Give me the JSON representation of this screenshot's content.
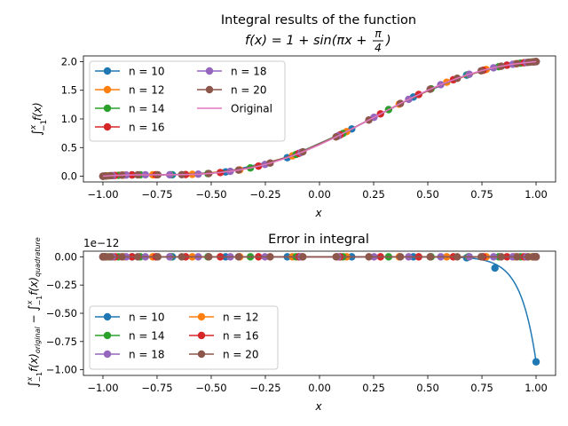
{
  "chart_data": [
    {
      "type": "line",
      "title_line1": "Integral results of the function",
      "title_line2": {
        "lhs": "f(x) = 1 + sin(πx + ",
        "num": "π",
        "den": "4",
        "rhs": ")"
      },
      "xlabel": "x",
      "ylabel": "∫",
      "ylabel_parts": {
        "sup": "x",
        "sub": "−1",
        "body": "f(x)"
      },
      "xlim": [
        -1.09,
        1.09
      ],
      "ylim": [
        -0.1,
        2.1
      ],
      "xticks": [
        -1.0,
        -0.75,
        -0.5,
        -0.25,
        0.0,
        0.25,
        0.5,
        0.75,
        1.0
      ],
      "xtick_labels": [
        "−1.00",
        "−0.75",
        "−0.50",
        "−0.25",
        "0.00",
        "0.25",
        "0.50",
        "0.75",
        "1.00"
      ],
      "yticks": [
        0.0,
        0.5,
        1.0,
        1.5,
        2.0
      ],
      "ytick_labels": [
        "0.0",
        "0.5",
        "1.0",
        "1.5",
        "2.0"
      ],
      "grid": false,
      "legend_placement": "upper left, 2 columns",
      "legend": [
        "n = 10",
        "n = 12",
        "n = 14",
        "n = 16",
        "n = 18",
        "n = 20",
        "Original"
      ],
      "series": [
        {
          "name": "n = 10",
          "color": "#1f77b4",
          "n": 10
        },
        {
          "name": "n = 12",
          "color": "#ff7f0e",
          "n": 12
        },
        {
          "name": "n = 14",
          "color": "#2ca02c",
          "n": 14
        },
        {
          "name": "n = 16",
          "color": "#d62728",
          "n": 16
        },
        {
          "name": "n = 18",
          "color": "#9467bd",
          "n": 18
        },
        {
          "name": "n = 20",
          "color": "#8c564b",
          "n": 20
        },
        {
          "name": "Original",
          "color": "#e377c2",
          "n": 0
        }
      ]
    },
    {
      "type": "line",
      "title": "Error in integral",
      "xlabel": "x",
      "ylabel_parts": {
        "left": "∫",
        "left_sup": "x",
        "left_sub": "−1",
        "left_body": "f(x)",
        "left_body_sub": "original",
        "minus": " − ",
        "right": "∫",
        "right_sup": "x",
        "right_sub": "−1",
        "right_body": "f(x)",
        "right_body_sub": "quadrature"
      },
      "offset_label": "1e−12",
      "xlim": [
        -1.09,
        1.09
      ],
      "ylim": [
        -1.05,
        0.05
      ],
      "xticks": [
        -1.0,
        -0.75,
        -0.5,
        -0.25,
        0.0,
        0.25,
        0.5,
        0.75,
        1.0
      ],
      "xtick_labels": [
        "−1.00",
        "−0.75",
        "−0.50",
        "−0.25",
        "0.00",
        "0.25",
        "0.50",
        "0.75",
        "1.00"
      ],
      "yticks": [
        0.0,
        -0.25,
        -0.5,
        -0.75,
        -1.0
      ],
      "ytick_labels": [
        "0.00",
        "−0.25",
        "−0.50",
        "−0.75",
        "−1.00"
      ],
      "grid": false,
      "legend_placement": "lower left, 2 columns",
      "legend": [
        "n = 10",
        "n = 12",
        "n = 14",
        "n = 16",
        "n = 18",
        "n = 20"
      ],
      "series": [
        {
          "name": "n = 10",
          "color": "#1f77b4",
          "n": 10,
          "tail_points": [
            [
              0.81,
              -0.1
            ],
            [
              1.0,
              -0.93
            ]
          ]
        },
        {
          "name": "n = 12",
          "color": "#ff7f0e",
          "n": 12
        },
        {
          "name": "n = 14",
          "color": "#2ca02c",
          "n": 14
        },
        {
          "name": "n = 16",
          "color": "#d62728",
          "n": 16
        },
        {
          "name": "n = 18",
          "color": "#9467bd",
          "n": 18
        },
        {
          "name": "n = 20",
          "color": "#8c564b",
          "n": 20
        }
      ]
    }
  ]
}
